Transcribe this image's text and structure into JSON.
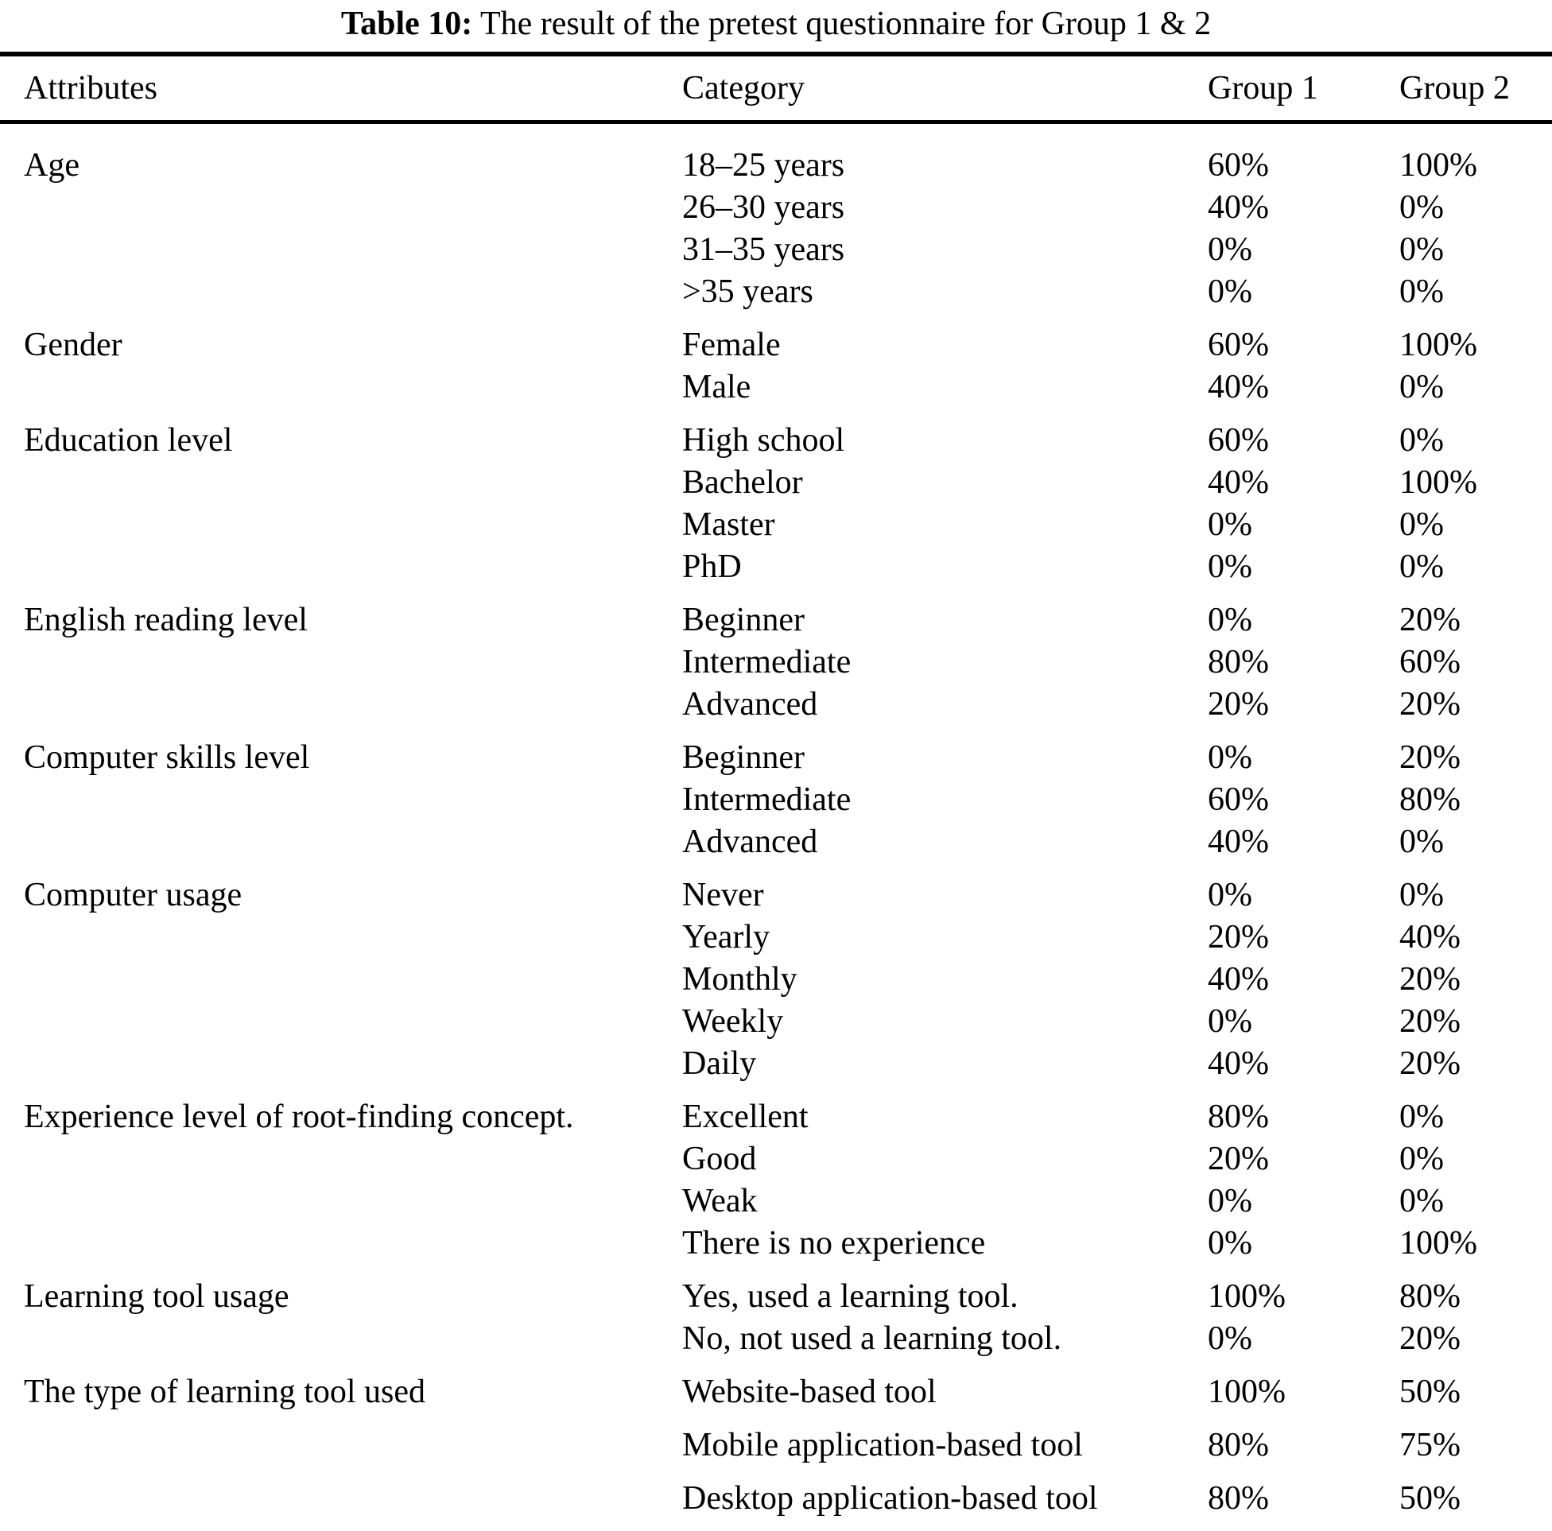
{
  "title": {
    "label": "Table 10:",
    "rest": "The result of the pretest questionnaire for Group 1 & 2"
  },
  "columns": [
    "Attributes",
    "Category",
    "Group 1",
    "Group 2"
  ],
  "groups": [
    {
      "attribute": "Age",
      "rows": [
        {
          "category": "18–25 years",
          "group1": "60%",
          "group2": "100%"
        },
        {
          "category": "26–30 years",
          "group1": "40%",
          "group2": "0%"
        },
        {
          "category": "31–35 years",
          "group1": "0%",
          "group2": "0%"
        },
        {
          "category": ">35 years",
          "group1": "0%",
          "group2": "0%"
        }
      ]
    },
    {
      "attribute": "Gender",
      "rows": [
        {
          "category": "Female",
          "group1": "60%",
          "group2": "100%"
        },
        {
          "category": "Male",
          "group1": "40%",
          "group2": "0%"
        }
      ]
    },
    {
      "attribute": "Education level",
      "rows": [
        {
          "category": "High school",
          "group1": "60%",
          "group2": "0%"
        },
        {
          "category": "Bachelor",
          "group1": "40%",
          "group2": "100%"
        },
        {
          "category": "Master",
          "group1": "0%",
          "group2": "0%"
        },
        {
          "category": "PhD",
          "group1": "0%",
          "group2": "0%"
        }
      ]
    },
    {
      "attribute": "English reading level",
      "rows": [
        {
          "category": "Beginner",
          "group1": "0%",
          "group2": "20%"
        },
        {
          "category": "Intermediate",
          "group1": "80%",
          "group2": "60%"
        },
        {
          "category": "Advanced",
          "group1": "20%",
          "group2": "20%"
        }
      ]
    },
    {
      "attribute": "Computer skills level",
      "rows": [
        {
          "category": "Beginner",
          "group1": "0%",
          "group2": "20%"
        },
        {
          "category": "Intermediate",
          "group1": "60%",
          "group2": "80%"
        },
        {
          "category": "Advanced",
          "group1": "40%",
          "group2": "0%"
        }
      ]
    },
    {
      "attribute": "Computer usage",
      "rows": [
        {
          "category": "Never",
          "group1": "0%",
          "group2": "0%"
        },
        {
          "category": "Yearly",
          "group1": "20%",
          "group2": "40%"
        },
        {
          "category": "Monthly",
          "group1": "40%",
          "group2": "20%"
        },
        {
          "category": "Weekly",
          "group1": "0%",
          "group2": "20%"
        },
        {
          "category": "Daily",
          "group1": "40%",
          "group2": "20%"
        }
      ]
    },
    {
      "attribute": "Experience level of root-finding concept.",
      "rows": [
        {
          "category": "Excellent",
          "group1": "80%",
          "group2": "0%"
        },
        {
          "category": "Good",
          "group1": "20%",
          "group2": "0%"
        },
        {
          "category": "Weak",
          "group1": "0%",
          "group2": "0%"
        },
        {
          "category": "There is no experience",
          "group1": "0%",
          "group2": "100%"
        }
      ]
    },
    {
      "attribute": "Learning tool usage",
      "rows": [
        {
          "category": "Yes, used a learning tool.",
          "group1": "100%",
          "group2": "80%"
        },
        {
          "category": "No, not used a learning tool.",
          "group1": "0%",
          "group2": "20%"
        }
      ]
    },
    {
      "attribute": "The type of learning tool used",
      "spaced": true,
      "rows": [
        {
          "category": "Website-based tool",
          "group1": "100%",
          "group2": "50%"
        },
        {
          "category": "Mobile application-based tool",
          "group1": "80%",
          "group2": "75%"
        },
        {
          "category": "Desktop application-based tool",
          "group1": "80%",
          "group2": "50%"
        }
      ]
    }
  ]
}
